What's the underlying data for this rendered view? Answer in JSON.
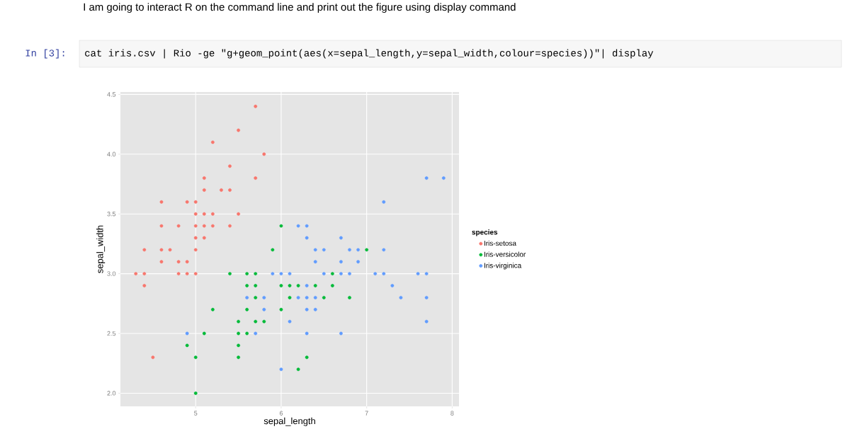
{
  "chart_data": {
    "type": "scatter",
    "title": "I am going to interact R on the command line and print out the figure using display command",
    "annotations": [
      "In [3]:",
      "cat iris.csv | Rio -ge \"g+geom_point(aes(x=sepal_length,y=sepal_width,colour=species))\"| display"
    ],
    "xlabel": "sepal_length",
    "ylabel": "sepal_width",
    "legend_title": "species",
    "xlim": [
      4.12,
      8.08
    ],
    "ylim": [
      1.89,
      4.52
    ],
    "xticks": [
      5,
      6,
      7,
      8
    ],
    "yticks": [
      {
        "value": 2,
        "label": "2.0"
      },
      {
        "value": 2.5,
        "label": "2.5"
      },
      {
        "value": 3,
        "label": "3.0"
      },
      {
        "value": 3.5,
        "label": "3.5"
      },
      {
        "value": 4,
        "label": "4.0"
      },
      {
        "value": 4.5,
        "label": "4.5"
      }
    ],
    "grid": true,
    "legend": "right",
    "marker": "circle",
    "series": [
      {
        "name": "Iris-setosa",
        "color": "#f8766d",
        "x": [
          5.1,
          4.9,
          4.7,
          4.6,
          5.0,
          5.4,
          4.6,
          5.0,
          4.4,
          4.9,
          5.4,
          4.8,
          4.8,
          4.3,
          5.8,
          5.7,
          5.7,
          5.1,
          5.4,
          5.1,
          4.6,
          5.1,
          5.0,
          5.2,
          5.2,
          4.8,
          5.2,
          5.5,
          5.0,
          5.5,
          4.9,
          4.4,
          5.1,
          5.0,
          4.5,
          4.4,
          4.6,
          5.3,
          5.0
        ],
        "values": [
          3.5,
          3.0,
          3.2,
          3.1,
          3.6,
          3.9,
          3.4,
          3.4,
          2.9,
          3.1,
          3.7,
          3.4,
          3.0,
          3.0,
          4.0,
          4.4,
          3.8,
          3.8,
          3.4,
          3.7,
          3.6,
          3.3,
          3.0,
          3.5,
          3.4,
          3.1,
          4.1,
          4.2,
          3.2,
          3.5,
          3.6,
          3.0,
          3.4,
          3.5,
          2.3,
          3.2,
          3.2,
          3.7,
          3.3
        ]
      },
      {
        "name": "Iris-versicolor",
        "color": "#00ba38",
        "x": [
          7.0,
          5.5,
          6.5,
          5.7,
          4.9,
          6.6,
          5.2,
          5.0,
          6.1,
          5.6,
          5.6,
          6.2,
          5.6,
          5.9,
          6.1,
          6.4,
          6.6,
          6.8,
          6.0,
          5.7,
          5.5,
          6.0,
          5.4,
          6.0,
          6.3,
          5.5,
          5.5,
          5.8,
          5.0,
          5.6,
          5.7,
          5.7,
          6.2,
          5.1
        ],
        "values": [
          3.2,
          2.3,
          2.8,
          2.8,
          2.4,
          2.9,
          2.7,
          2.0,
          2.9,
          2.9,
          3.0,
          2.2,
          2.5,
          3.2,
          2.8,
          2.9,
          3.0,
          2.8,
          2.9,
          2.6,
          2.4,
          2.7,
          3.0,
          3.4,
          2.3,
          2.5,
          2.6,
          2.6,
          2.3,
          2.7,
          3.0,
          2.9,
          2.9,
          2.5
        ]
      },
      {
        "name": "Iris-virginica",
        "color": "#619cff",
        "x": [
          6.3,
          5.8,
          7.1,
          6.3,
          6.5,
          7.6,
          4.9,
          7.3,
          6.7,
          7.2,
          6.5,
          6.4,
          6.8,
          5.7,
          5.8,
          6.4,
          7.7,
          7.7,
          6.0,
          6.9,
          5.6,
          7.7,
          6.3,
          6.7,
          7.2,
          6.2,
          6.1,
          6.4,
          7.2,
          7.4,
          7.9,
          6.3,
          6.1,
          7.7,
          6.3,
          6.4,
          6.0,
          6.9,
          6.7,
          6.8,
          6.7,
          6.3,
          6.2,
          5.9
        ],
        "values": [
          3.3,
          2.7,
          3.0,
          2.9,
          3.0,
          3.0,
          2.5,
          2.9,
          2.5,
          3.6,
          3.2,
          2.7,
          3.0,
          2.5,
          2.8,
          3.2,
          3.8,
          2.6,
          2.2,
          3.2,
          2.8,
          2.8,
          2.7,
          3.3,
          3.2,
          2.8,
          3.0,
          2.8,
          3.0,
          2.8,
          3.8,
          2.8,
          2.6,
          3.0,
          3.4,
          3.1,
          3.0,
          3.1,
          3.1,
          3.2,
          3.0,
          2.5,
          3.4,
          3.0
        ]
      }
    ]
  }
}
